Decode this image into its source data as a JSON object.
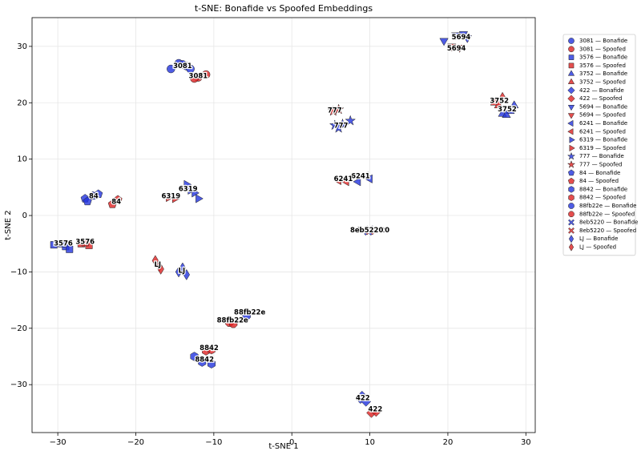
{
  "chart_data": {
    "type": "scatter",
    "title": "t-SNE: Bonafide vs Spoofed Embeddings",
    "x_label": "t-SNE 1",
    "y_label": "t-SNE 2",
    "xlim": [
      -33.3,
      31.2
    ],
    "ylim": [
      -38.5,
      35.1
    ],
    "xticks": [
      {
        "value": -30,
        "label": "−30"
      },
      {
        "value": -20,
        "label": "−20"
      },
      {
        "value": -10,
        "label": "−10"
      },
      0,
      10,
      20,
      30
    ],
    "yticks": [
      {
        "value": -30,
        "label": "−30"
      },
      {
        "value": -20,
        "label": "−20"
      },
      {
        "value": -10,
        "label": "−10"
      },
      0,
      10,
      20,
      30
    ],
    "grid": true,
    "legend": "outside right",
    "series": [
      {
        "name": "3081 — Bonafide",
        "color": "#2233dd",
        "marker": "o",
        "x": [
          -15.5,
          -14.5,
          -13.5,
          -13,
          -14
        ],
        "y": [
          26,
          27,
          26.5,
          26,
          26.8
        ]
      },
      {
        "name": "3081 — Spoofed",
        "color": "#dd2222",
        "marker": "o",
        "x": [
          -12,
          -11,
          -12.5
        ],
        "y": [
          24.5,
          25,
          24.3
        ]
      },
      {
        "name": "3576 — Bonafide",
        "color": "#2233dd",
        "marker": "s",
        "x": [
          -30.5,
          -29,
          -28.5,
          -29.5
        ],
        "y": [
          -5.2,
          -5.5,
          -6,
          -5
        ]
      },
      {
        "name": "3576 — Spoofed",
        "color": "#dd2222",
        "marker": "s",
        "x": [
          -27,
          -26,
          -26.5
        ],
        "y": [
          -5,
          -5.3,
          -4.8
        ]
      },
      {
        "name": "3752 — Bonafide",
        "color": "#2233dd",
        "marker": "^",
        "x": [
          27,
          28,
          28.5,
          27.5
        ],
        "y": [
          18,
          18.5,
          19.5,
          17.8
        ]
      },
      {
        "name": "3752 — Spoofed",
        "color": "#dd2222",
        "marker": "^",
        "x": [
          26,
          27,
          26.5
        ],
        "y": [
          20,
          21,
          19.5
        ]
      },
      {
        "name": "422 — Bonafide",
        "color": "#2233dd",
        "marker": "D",
        "x": [
          8.8,
          9.5,
          9
        ],
        "y": [
          -32.5,
          -33,
          -32
        ]
      },
      {
        "name": "422 — Spoofed",
        "color": "#dd2222",
        "marker": "D",
        "x": [
          10.2,
          10.8
        ],
        "y": [
          -35,
          -34.8
        ]
      },
      {
        "name": "5694 — Bonafide",
        "color": "#2233dd",
        "marker": "v",
        "x": [
          19.5,
          21,
          22,
          22.5
        ],
        "y": [
          31,
          32,
          32.2,
          31.5
        ]
      },
      {
        "name": "5694 — Spoofed",
        "color": "#dd2222",
        "marker": "v",
        "x": [
          20.5,
          21.5
        ],
        "y": [
          30,
          29.8
        ]
      },
      {
        "name": "6241 — Bonafide",
        "color": "#2233dd",
        "marker": "<",
        "x": [
          8.5,
          9.5,
          10
        ],
        "y": [
          6,
          7,
          6.5
        ]
      },
      {
        "name": "6241 — Spoofed",
        "color": "#dd2222",
        "marker": "<",
        "x": [
          6,
          7
        ],
        "y": [
          6.2,
          6
        ]
      },
      {
        "name": "6319 — Bonafide",
        "color": "#2233dd",
        "marker": ">",
        "x": [
          -13.5,
          -12.5,
          -12,
          -13
        ],
        "y": [
          5.5,
          4,
          3,
          4.5
        ]
      },
      {
        "name": "6319 — Spoofed",
        "color": "#dd2222",
        "marker": ">",
        "x": [
          -15.8,
          -15
        ],
        "y": [
          3.2,
          3
        ]
      },
      {
        "name": "777 — Bonafide",
        "color": "#2233dd",
        "marker": "*",
        "x": [
          5.5,
          6.5,
          7.5,
          6
        ],
        "y": [
          16,
          16.2,
          16.8,
          15.5
        ]
      },
      {
        "name": "777 — Spoofed",
        "color": "#dd2222",
        "marker": "*",
        "x": [
          5.3,
          6
        ],
        "y": [
          18.5,
          18.8
        ]
      },
      {
        "name": "84 — Bonafide",
        "color": "#2233dd",
        "marker": "p",
        "x": [
          -26.5,
          -25.5,
          -24.8,
          -26.2
        ],
        "y": [
          3,
          3.5,
          3.8,
          2.5
        ]
      },
      {
        "name": "84 — Spoofed",
        "color": "#dd2222",
        "marker": "p",
        "x": [
          -23,
          -22.3
        ],
        "y": [
          2,
          2.8
        ]
      },
      {
        "name": "8842 — Bonafide",
        "color": "#2233dd",
        "marker": "h",
        "x": [
          -12.5,
          -11.5,
          -10.3
        ],
        "y": [
          -25,
          -26,
          -26.3
        ]
      },
      {
        "name": "8842 — Spoofed",
        "color": "#dd2222",
        "marker": "h",
        "x": [
          -11,
          -10.3
        ],
        "y": [
          -24,
          -23.8
        ]
      },
      {
        "name": "88fb22e — Bonafide",
        "color": "#2233dd",
        "marker": "8",
        "x": [
          -5.8
        ],
        "y": [
          -17.8
        ]
      },
      {
        "name": "88fb22e — Spoofed",
        "color": "#dd2222",
        "marker": "8",
        "x": [
          -8,
          -7.5
        ],
        "y": [
          -19,
          -19.2
        ]
      },
      {
        "name": "8eb5220 — Bonafide",
        "color": "#2233dd",
        "marker": "X",
        "x": [
          10,
          9.8
        ],
        "y": [
          -2.5,
          -2.8
        ]
      },
      {
        "name": "8eb5220 — Spoofed",
        "color": "#dd2222",
        "marker": "X",
        "x": [
          10
        ],
        "y": [
          -2.7
        ]
      },
      {
        "name": "LJ — Bonafide",
        "color": "#2233dd",
        "marker": "d",
        "x": [
          -14.5,
          -13.5,
          -14
        ],
        "y": [
          -10,
          -10.5,
          -9.3
        ]
      },
      {
        "name": "LJ — Spoofed",
        "color": "#dd2222",
        "marker": "d",
        "x": [
          -17.5,
          -17,
          -16.8
        ],
        "y": [
          -8,
          -9,
          -9.5
        ]
      }
    ],
    "annotations": [
      {
        "text": "3081",
        "x": -14,
        "y": 26.5
      },
      {
        "text": "3081",
        "x": -12,
        "y": 24.7
      },
      {
        "text": "3576",
        "x": -29.3,
        "y": -5
      },
      {
        "text": "3576",
        "x": -26.5,
        "y": -4.7
      },
      {
        "text": "3752",
        "x": 27.6,
        "y": 18.8
      },
      {
        "text": "3752",
        "x": 26.6,
        "y": 20.3
      },
      {
        "text": "422",
        "x": 9.1,
        "y": -32.4
      },
      {
        "text": "422",
        "x": 10.7,
        "y": -34.4
      },
      {
        "text": "5694",
        "x": 21.7,
        "y": 31.6
      },
      {
        "text": "5694",
        "x": 21.1,
        "y": 29.6
      },
      {
        "text": "6241",
        "x": 8.8,
        "y": 7
      },
      {
        "text": "6241",
        "x": 6.6,
        "y": 6.5
      },
      {
        "text": "6319",
        "x": -13.3,
        "y": 4.7
      },
      {
        "text": "6319",
        "x": -15.5,
        "y": 3.4
      },
      {
        "text": "777",
        "x": 6.3,
        "y": 15.9
      },
      {
        "text": "777",
        "x": 5.5,
        "y": 18.6
      },
      {
        "text": "84",
        "x": -25.4,
        "y": 3.4
      },
      {
        "text": "84",
        "x": -22.5,
        "y": 2.4
      },
      {
        "text": "8842",
        "x": -11.2,
        "y": -25.6
      },
      {
        "text": "8842",
        "x": -10.6,
        "y": -23.5
      },
      {
        "text": "88fb22e",
        "x": -5.4,
        "y": -17.2
      },
      {
        "text": "88fb22e",
        "x": -7.6,
        "y": -18.6
      },
      {
        "text": "8eb5220",
        "x": 10.4,
        "y": -2.6
      },
      {
        "text": "8eb5220",
        "x": 9.6,
        "y": -2.6
      },
      {
        "text": "LJ",
        "x": -14.1,
        "y": -9.8
      },
      {
        "text": "LJ",
        "x": -17.2,
        "y": -8.7
      }
    ]
  }
}
